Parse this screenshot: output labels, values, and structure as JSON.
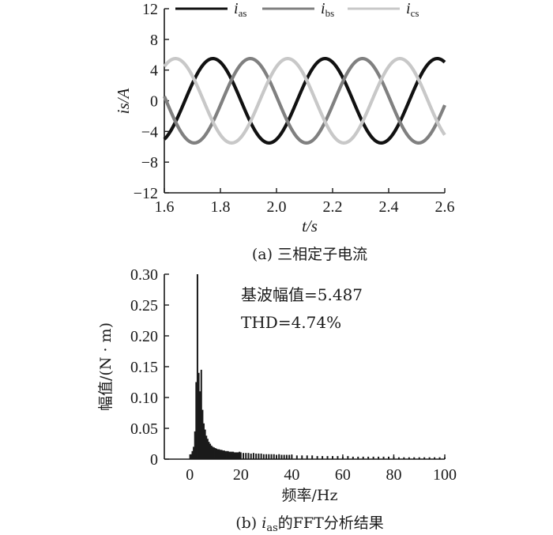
{
  "chart_data": [
    {
      "type": "line",
      "caption": "(a) 三相定子电流",
      "xlabel": "t/s",
      "ylabel": "is/A",
      "xlim": [
        1.6,
        2.6
      ],
      "ylim": [
        -12,
        12
      ],
      "xticks": [
        "1.6",
        "1.8",
        "2.0",
        "2.2",
        "2.4",
        "2.6"
      ],
      "yticks": [
        "12",
        "8",
        "4",
        "0",
        "−4",
        "−8",
        "−12"
      ],
      "legend_position": "top",
      "series": [
        {
          "name": "ias",
          "label_main": "i",
          "label_sub": "as",
          "color": "#111111",
          "amplitude": 5.5,
          "frequency_hz": 2.5,
          "phase_deg": -66
        },
        {
          "name": "ibs",
          "label_main": "i",
          "label_sub": "bs",
          "color": "#808080",
          "amplitude": 5.5,
          "frequency_hz": 2.5,
          "phase_deg": -186
        },
        {
          "name": "ics",
          "label_main": "i",
          "label_sub": "cs",
          "color": "#c8c8c8",
          "amplitude": 5.5,
          "frequency_hz": 2.5,
          "phase_deg": 54
        }
      ]
    },
    {
      "type": "bar",
      "caption_prefix": "(b) ",
      "caption_var_main": "i",
      "caption_var_sub": "as",
      "caption_suffix": "的FFT分析结果",
      "xlabel": "频率/Hz",
      "ylabel": "幅值/(N · m)",
      "xlim": [
        -10,
        100
      ],
      "ylim": [
        0,
        0.3
      ],
      "xticks": [
        "0",
        "20",
        "40",
        "60",
        "80",
        "100"
      ],
      "yticks": [
        "0.30",
        "0.25",
        "0.20",
        "0.15",
        "0.10",
        "0.05",
        "0"
      ],
      "annotations": [
        "基波幅值=5.487",
        "THD=4.74%"
      ],
      "color": "#1a1a1a",
      "x": [
        0.5,
        1,
        1.5,
        2,
        2.5,
        3,
        3.5,
        4,
        4.5,
        5,
        5.5,
        6,
        6.5,
        7,
        7.5,
        8,
        8.5,
        9,
        9.5,
        10,
        10.5,
        11,
        11.5,
        12,
        12.5,
        13,
        13.5,
        14,
        14.5,
        15,
        15.5,
        16,
        16.5,
        17,
        17.5,
        18,
        18.5,
        19,
        19.5,
        20,
        21,
        22,
        23,
        24,
        25,
        26,
        27,
        28,
        29,
        30,
        31,
        32,
        33,
        34,
        35,
        36,
        37,
        38,
        39,
        40,
        42,
        44,
        46,
        48,
        50,
        52,
        54,
        56,
        58,
        60,
        62,
        64,
        66,
        68,
        70,
        72,
        74,
        76,
        78,
        80,
        82,
        84,
        86,
        88,
        90,
        92,
        94,
        96,
        98,
        100
      ],
      "values": [
        0.008,
        0.013,
        0.02,
        0.045,
        0.125,
        0.3,
        0.14,
        0.11,
        0.145,
        0.08,
        0.058,
        0.048,
        0.038,
        0.033,
        0.028,
        0.025,
        0.022,
        0.02,
        0.019,
        0.018,
        0.017,
        0.016,
        0.016,
        0.015,
        0.015,
        0.014,
        0.014,
        0.013,
        0.013,
        0.013,
        0.012,
        0.012,
        0.012,
        0.012,
        0.011,
        0.011,
        0.011,
        0.011,
        0.012,
        0.011,
        0.01,
        0.01,
        0.01,
        0.009,
        0.01,
        0.009,
        0.009,
        0.009,
        0.008,
        0.008,
        0.008,
        0.008,
        0.008,
        0.007,
        0.008,
        0.007,
        0.007,
        0.007,
        0.007,
        0.007,
        0.006,
        0.006,
        0.006,
        0.006,
        0.005,
        0.005,
        0.005,
        0.005,
        0.005,
        0.004,
        0.005,
        0.004,
        0.004,
        0.004,
        0.004,
        0.004,
        0.004,
        0.004,
        0.004,
        0.004,
        0.003,
        0.003,
        0.003,
        0.003,
        0.003,
        0.003,
        0.003,
        0.003,
        0.003,
        0.003
      ]
    }
  ]
}
